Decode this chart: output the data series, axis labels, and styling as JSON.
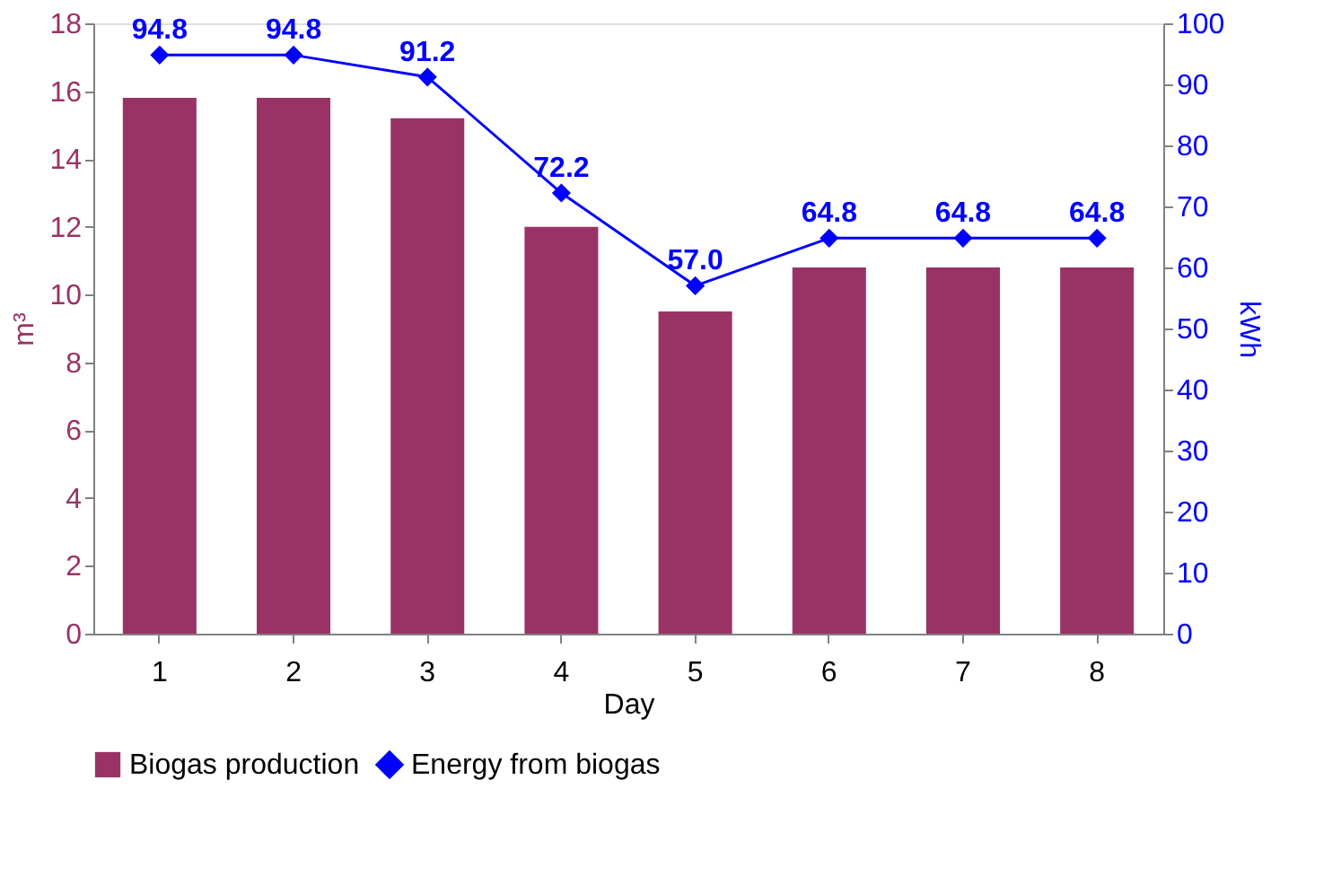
{
  "chart_data": {
    "type": "bar",
    "xlabel": "Day",
    "ylabel": "m³",
    "y2label": "kWh",
    "categories": [
      "1",
      "2",
      "3",
      "4",
      "5",
      "6",
      "7",
      "8"
    ],
    "series": [
      {
        "name": "Biogas production",
        "color": "#993366",
        "values": [
          15.8,
          15.8,
          15.2,
          12.0,
          9.5,
          10.8,
          10.8,
          10.8
        ]
      },
      {
        "name": "Energy from biogas",
        "type": "line",
        "axis": "y2",
        "color": "#0000ff",
        "marker": "diamond",
        "values": [
          94.8,
          94.8,
          91.2,
          72.2,
          57.0,
          64.8,
          64.8,
          64.8
        ],
        "value_labels": [
          "94.8",
          "94.8",
          "91.2",
          "72.2",
          "57.0",
          "64.8",
          "64.8",
          "64.8"
        ]
      }
    ],
    "ylim": [
      0,
      18
    ],
    "yticks": [
      0,
      2,
      4,
      6,
      8,
      10,
      12,
      14,
      16,
      18
    ],
    "y2lim": [
      0,
      100
    ],
    "y2ticks": [
      0,
      10,
      20,
      30,
      40,
      50,
      60,
      70,
      80,
      90,
      100
    ],
    "grid": false,
    "legend": "bottom"
  }
}
